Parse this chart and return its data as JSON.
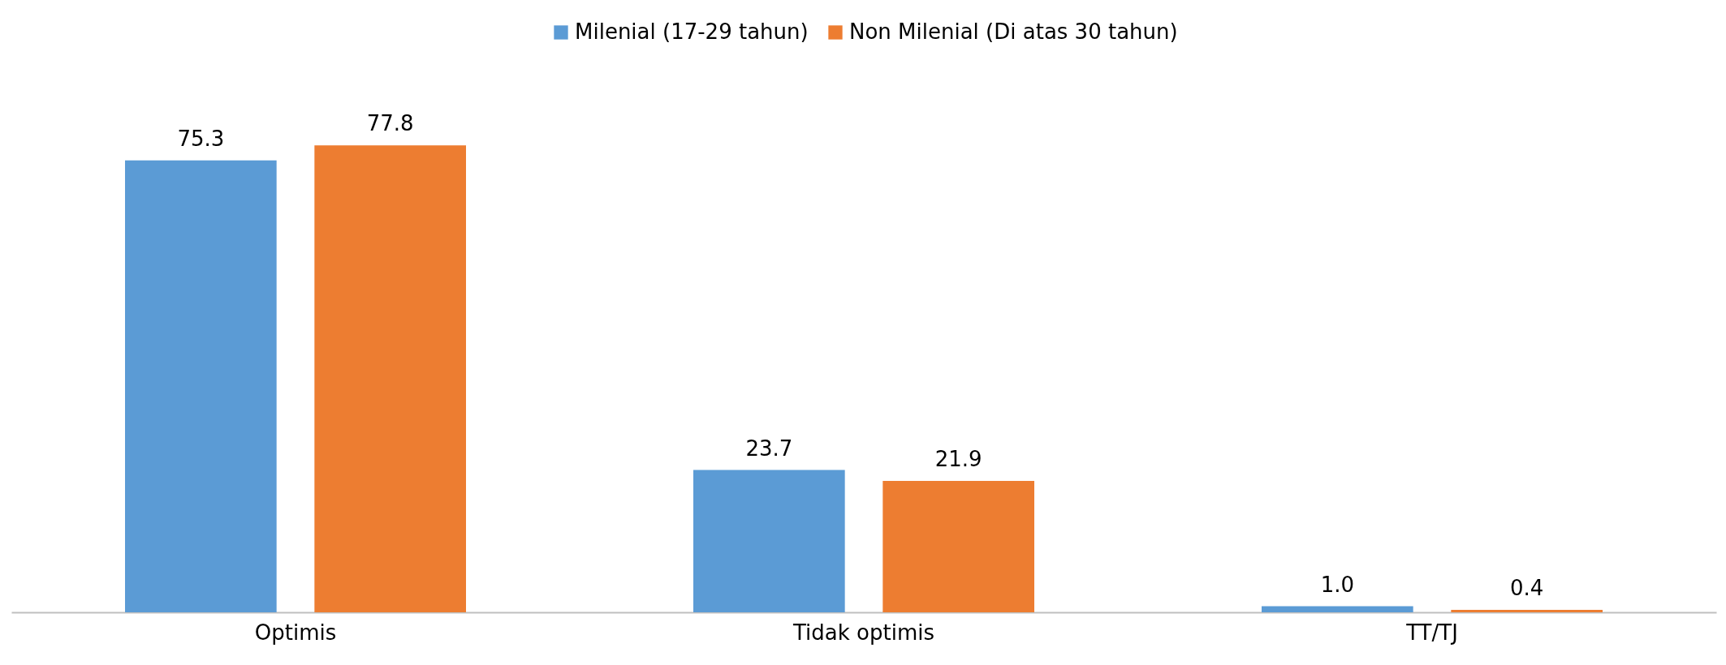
{
  "chart_data": {
    "type": "bar",
    "categories": [
      "Optimis",
      "Tidak optimis",
      "TT/TJ"
    ],
    "series": [
      {
        "name": "Milenial (17-29 tahun)",
        "color": "#5b9bd5",
        "values": [
          75.3,
          23.7,
          1.0
        ],
        "value_labels": [
          "75.3",
          "23.7",
          "1.0"
        ]
      },
      {
        "name": "Non Milenial (Di atas 30 tahun)",
        "color": "#ed7d31",
        "values": [
          77.8,
          21.9,
          0.4
        ],
        "value_labels": [
          "77.8",
          "21.9",
          "0.4"
        ]
      }
    ],
    "legend": "top",
    "tick_labels": "x"
  }
}
